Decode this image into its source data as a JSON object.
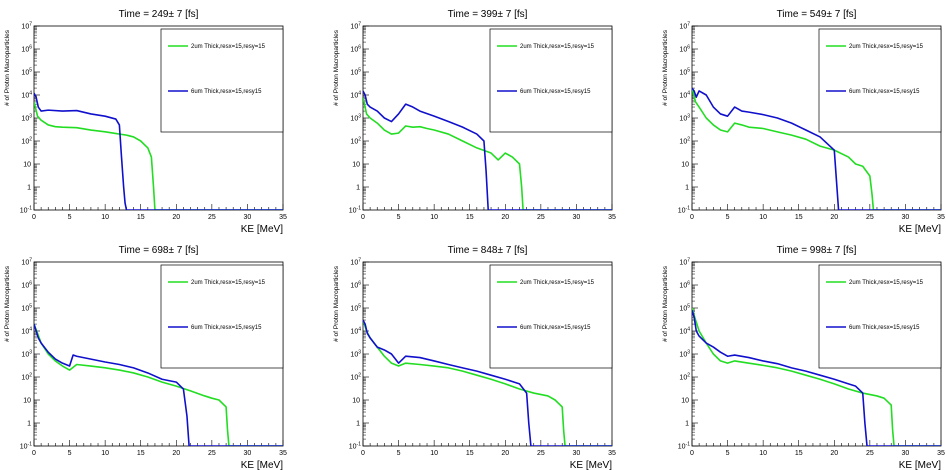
{
  "chart_data": [
    {
      "type": "line",
      "title": "Time = 249± 7 [fs]",
      "xlabel": "KE [MeV]",
      "ylabel": "# of Proton Macroparticles",
      "xlim": [
        0,
        35
      ],
      "ylim": [
        0.1,
        10000000
      ],
      "yscale": "log",
      "legend": "top-right",
      "series": [
        {
          "name": "2um Thick,resx=15,resy=15",
          "color": "#22dd22",
          "x": [
            0,
            0.5,
            1,
            2,
            3,
            4,
            6,
            8,
            10,
            12,
            13,
            14,
            15,
            16,
            16.5,
            16.8,
            17,
            18,
            35
          ],
          "y": [
            5000,
            1200,
            800,
            500,
            420,
            400,
            380,
            300,
            250,
            200,
            180,
            150,
            100,
            50,
            20,
            1,
            0.1,
            0.1,
            0.1
          ]
        },
        {
          "name": "6um Thick,resx=15,resy15",
          "color": "#1010cc",
          "x": [
            0,
            0.3,
            0.6,
            1,
            2,
            4,
            6,
            8,
            10,
            11.5,
            12,
            12.3,
            12.6,
            12.8,
            13,
            35
          ],
          "y": [
            12000,
            8000,
            3000,
            2000,
            2200,
            2000,
            2100,
            1500,
            1200,
            900,
            500,
            20,
            1,
            0.2,
            0.1,
            0.1
          ]
        }
      ]
    },
    {
      "type": "line",
      "title": "Time = 399± 7 [fs]",
      "xlabel": "",
      "ylabel": "# of Proton Macroparticles",
      "xlim": [
        0,
        35
      ],
      "ylim": [
        0.1,
        10000000
      ],
      "yscale": "log",
      "legend": "top-right",
      "series": [
        {
          "name": "2um Thick,resx=15,resy=15",
          "color": "#22dd22",
          "x": [
            0,
            0.5,
            1,
            2,
            3,
            4,
            5,
            6,
            7,
            8,
            9,
            10,
            12,
            14,
            16,
            18,
            19,
            20,
            21,
            22,
            22.3,
            22.5,
            35
          ],
          "y": [
            8000,
            1500,
            1000,
            600,
            300,
            200,
            220,
            450,
            400,
            420,
            350,
            300,
            200,
            100,
            50,
            30,
            15,
            30,
            20,
            10,
            1,
            0.1,
            0.1
          ]
        },
        {
          "name": "6um Thick,resx=15,resy15",
          "color": "#1010cc",
          "x": [
            0,
            0.3,
            0.6,
            1,
            2,
            3,
            4,
            5,
            6,
            7,
            8,
            10,
            12,
            14,
            16,
            17,
            17.3,
            17.6,
            35
          ],
          "y": [
            15000,
            10000,
            4000,
            3000,
            2000,
            1000,
            700,
            1500,
            4000,
            3000,
            2000,
            1200,
            700,
            400,
            200,
            100,
            5,
            0.1,
            0.1
          ]
        }
      ]
    },
    {
      "type": "line",
      "title": "Time = 549± 7 [fs]",
      "xlabel": "KE [MeV]",
      "ylabel": "# of Proton Macroparticles",
      "xlim": [
        0,
        35
      ],
      "ylim": [
        0.1,
        10000000
      ],
      "yscale": "log",
      "legend": "top-right",
      "series": [
        {
          "name": "2um Thick,resx=15,resy=15",
          "color": "#22dd22",
          "x": [
            0,
            0.5,
            1,
            2,
            3,
            4,
            5,
            6,
            7,
            8,
            10,
            12,
            14,
            16,
            18,
            20,
            22,
            23,
            24,
            25,
            25.3,
            25.5,
            35
          ],
          "y": [
            20000,
            5000,
            3000,
            1000,
            500,
            300,
            250,
            600,
            500,
            400,
            350,
            250,
            180,
            120,
            60,
            40,
            20,
            10,
            8,
            3,
            0.5,
            0.1,
            0.1
          ]
        },
        {
          "name": "6um Thick,resx=15,resy15",
          "color": "#1010cc",
          "x": [
            0,
            0.3,
            0.6,
            1,
            2,
            3,
            4,
            5,
            6,
            7,
            8,
            10,
            12,
            14,
            16,
            18,
            20,
            20.3,
            20.6,
            35
          ],
          "y": [
            20000,
            15000,
            8000,
            15000,
            10000,
            3000,
            1500,
            1200,
            3000,
            2000,
            1800,
            1400,
            1000,
            600,
            300,
            150,
            40,
            2,
            0.1,
            0.1
          ]
        }
      ]
    },
    {
      "type": "line",
      "title": "Time = 698± 7 [fs]",
      "xlabel": "KE [MeV]",
      "ylabel": "# of Proton Macroparticles",
      "xlim": [
        0,
        35
      ],
      "ylim": [
        0.1,
        10000000
      ],
      "yscale": "log",
      "legend": "top-right",
      "series": [
        {
          "name": "2um Thick,resx=15,resy=15",
          "color": "#22dd22",
          "x": [
            0,
            0.5,
            1,
            2,
            3,
            4,
            5,
            6,
            8,
            10,
            12,
            14,
            16,
            18,
            20,
            22,
            24,
            25,
            26,
            27,
            27.2,
            27.4,
            35
          ],
          "y": [
            20000,
            8000,
            3000,
            1000,
            500,
            300,
            200,
            350,
            300,
            250,
            200,
            150,
            100,
            60,
            40,
            25,
            15,
            12,
            10,
            5,
            0.5,
            0.1,
            0.1
          ]
        },
        {
          "name": "6um Thick,resx=15,resy15",
          "color": "#1010cc",
          "x": [
            0,
            0.3,
            0.6,
            1,
            2,
            3,
            4,
            5,
            5.5,
            6,
            8,
            10,
            12,
            14,
            16,
            18,
            20,
            21,
            21.5,
            21.8,
            35
          ],
          "y": [
            20000,
            10000,
            5000,
            3000,
            1200,
            600,
            400,
            300,
            900,
            800,
            600,
            450,
            350,
            250,
            150,
            80,
            60,
            30,
            2,
            0.1,
            0.1
          ]
        }
      ]
    },
    {
      "type": "line",
      "title": "Time = 848± 7 [fs]",
      "xlabel": "KE [MeV]",
      "ylabel": "# of Proton Macroparticles",
      "xlim": [
        0,
        35
      ],
      "ylim": [
        0.1,
        10000000
      ],
      "yscale": "log",
      "legend": "top-right",
      "series": [
        {
          "name": "2um Thick,resx=15,resy=15",
          "color": "#22dd22",
          "x": [
            0,
            0.5,
            1,
            2,
            3,
            4,
            5,
            6,
            8,
            10,
            12,
            14,
            16,
            18,
            20,
            22,
            24,
            26,
            27,
            28,
            28.2,
            28.4,
            35
          ],
          "y": [
            30000,
            10000,
            5000,
            2000,
            800,
            400,
            300,
            400,
            350,
            300,
            250,
            180,
            120,
            80,
            50,
            30,
            20,
            15,
            10,
            5,
            0.5,
            0.1,
            0.1
          ]
        },
        {
          "name": "6um Thick,resx=15,resy15",
          "color": "#1010cc",
          "x": [
            0,
            0.3,
            0.6,
            1,
            2,
            3,
            4,
            5,
            6,
            8,
            10,
            12,
            14,
            16,
            18,
            20,
            22,
            23,
            23.3,
            23.6,
            35
          ],
          "y": [
            30000,
            20000,
            8000,
            5000,
            2000,
            1500,
            1000,
            400,
            800,
            700,
            500,
            350,
            250,
            180,
            120,
            80,
            50,
            20,
            1,
            0.1,
            0.1
          ]
        }
      ]
    },
    {
      "type": "line",
      "title": "Time = 998± 7 [fs]",
      "xlabel": "KE [MeV]",
      "ylabel": "# of Proton Macroparticles",
      "xlim": [
        0,
        35
      ],
      "ylim": [
        0.1,
        10000000
      ],
      "yscale": "log",
      "legend": "top-right",
      "series": [
        {
          "name": "2um Thick,resx=15,resy=15",
          "color": "#22dd22",
          "x": [
            0,
            0.5,
            1,
            2,
            3,
            4,
            5,
            6,
            8,
            10,
            12,
            14,
            16,
            18,
            20,
            22,
            24,
            26,
            27,
            28,
            28.2,
            28.4,
            35
          ],
          "y": [
            100000,
            30000,
            10000,
            3000,
            1000,
            500,
            400,
            500,
            400,
            320,
            250,
            180,
            120,
            80,
            50,
            30,
            20,
            15,
            12,
            6,
            0.5,
            0.1,
            0.1
          ]
        },
        {
          "name": "6um Thick,resx=15,resy15",
          "color": "#1010cc",
          "x": [
            0,
            0.3,
            0.6,
            1,
            2,
            3,
            4,
            5,
            6,
            8,
            10,
            12,
            14,
            16,
            18,
            20,
            22,
            23,
            24,
            24.3,
            24.6,
            35
          ],
          "y": [
            80000,
            40000,
            10000,
            6000,
            3000,
            2000,
            1200,
            800,
            900,
            700,
            500,
            380,
            250,
            180,
            120,
            80,
            50,
            40,
            20,
            1,
            0.1,
            0.1
          ]
        }
      ]
    }
  ],
  "axis_ticks": {
    "x": [
      "0",
      "5",
      "10",
      "15",
      "20",
      "25",
      "30",
      "35"
    ],
    "y": [
      {
        "base": "10",
        "exp": "-1"
      },
      {
        "base": "1",
        "exp": ""
      },
      {
        "base": "10",
        "exp": ""
      },
      {
        "base": "10",
        "exp": "2"
      },
      {
        "base": "10",
        "exp": "3"
      },
      {
        "base": "10",
        "exp": "4"
      },
      {
        "base": "10",
        "exp": "5"
      },
      {
        "base": "10",
        "exp": "6"
      },
      {
        "base": "10",
        "exp": "7"
      }
    ]
  }
}
